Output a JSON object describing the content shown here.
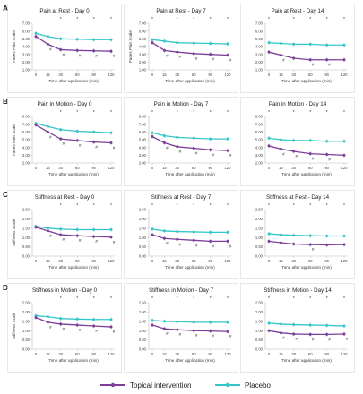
{
  "colors": {
    "topical": "#7b3f99",
    "placebo": "#35c6c9",
    "axis": "#bdbdbd",
    "text": "#222222"
  },
  "legend": {
    "topical": "Topical intervention",
    "placebo": "Placebo"
  },
  "rows": [
    {
      "label": "A.",
      "ylabel": "Faces Pain Scale"
    },
    {
      "label": "B.",
      "ylabel": "Faces Pain Scale"
    },
    {
      "label": "C.",
      "ylabel": "Stiffness Scale"
    },
    {
      "label": "D.",
      "ylabel": "Stiffness Scale"
    }
  ],
  "chart_data": [
    {
      "type": "line",
      "title": "Pain at Rest - Day 0",
      "xlabel": "Time after application (min)",
      "ylabel": "Faces Pain Scale",
      "x": [
        0,
        15,
        30,
        60,
        90,
        120
      ],
      "yticks": [
        "1.00",
        "2.00",
        "3.00",
        "4.00",
        "5.00",
        "6.00",
        "7.00"
      ],
      "ylim": [
        1,
        7
      ],
      "star_x": [
        30,
        60,
        90,
        120
      ],
      "hash_x": [
        15,
        30,
        60,
        90,
        120
      ],
      "series": [
        {
          "name": "Topical intervention",
          "values": [
            5.3,
            4.3,
            3.6,
            3.5,
            3.45,
            3.4
          ]
        },
        {
          "name": "Placebo",
          "values": [
            5.7,
            5.3,
            5.0,
            4.95,
            4.9,
            4.9
          ]
        }
      ]
    },
    {
      "type": "line",
      "title": "Pain at Rest - Day 7",
      "xlabel": "Time after application (min)",
      "ylabel": "Faces Pain Scale",
      "x": [
        0,
        15,
        30,
        60,
        90,
        120
      ],
      "yticks": [
        "1.00",
        "2.00",
        "3.00",
        "4.00",
        "5.00",
        "6.00",
        "7.00"
      ],
      "ylim": [
        1,
        7
      ],
      "star_x": [
        0,
        30,
        60,
        90,
        120
      ],
      "hash_x": [
        15,
        30,
        60,
        90,
        120
      ],
      "series": [
        {
          "name": "Topical intervention",
          "values": [
            4.5,
            3.5,
            3.3,
            3.1,
            3.0,
            2.9
          ]
        },
        {
          "name": "Placebo",
          "values": [
            4.9,
            4.7,
            4.5,
            4.45,
            4.4,
            4.35
          ]
        }
      ]
    },
    {
      "type": "line",
      "title": "Pain at Rest - Day 14",
      "xlabel": "Time after application (min)",
      "ylabel": "",
      "x": [
        0,
        15,
        30,
        60,
        90,
        120
      ],
      "yticks": [
        "1.00",
        "2.00",
        "3.00",
        "4.00",
        "5.00",
        "6.00",
        "7.00"
      ],
      "ylim": [
        1,
        7
      ],
      "star_x": [
        0,
        30,
        60,
        90,
        120
      ],
      "hash_x": [
        15,
        60,
        90
      ],
      "series": [
        {
          "name": "Topical intervention",
          "values": [
            3.3,
            2.9,
            2.5,
            2.3,
            2.3,
            2.3
          ]
        },
        {
          "name": "Placebo",
          "values": [
            4.5,
            4.4,
            4.3,
            4.3,
            4.2,
            4.2
          ]
        }
      ]
    },
    {
      "type": "line",
      "title": "Pain in Motion - Day 0",
      "xlabel": "Time after application (min)",
      "ylabel": "Faces Pain Scale",
      "x": [
        0,
        15,
        30,
        60,
        90,
        120
      ],
      "yticks": [
        "2.00",
        "3.00",
        "4.00",
        "5.00",
        "6.00",
        "7.00",
        "8.00"
      ],
      "ylim": [
        2,
        8
      ],
      "star_x": [
        30,
        60,
        90,
        120
      ],
      "hash_x": [
        15,
        30,
        60,
        90,
        120
      ],
      "series": [
        {
          "name": "Topical intervention",
          "values": [
            6.9,
            6.0,
            5.1,
            4.9,
            4.7,
            4.6
          ]
        },
        {
          "name": "Placebo",
          "values": [
            7.1,
            6.7,
            6.3,
            6.1,
            6.0,
            5.9
          ]
        }
      ]
    },
    {
      "type": "line",
      "title": "Pain in Motion - Day 7",
      "xlabel": "Time after application (min)",
      "ylabel": "",
      "x": [
        0,
        15,
        30,
        60,
        90,
        120
      ],
      "yticks": [
        "2.00",
        "3.00",
        "4.00",
        "5.00",
        "6.00",
        "7.00",
        "8.00"
      ],
      "ylim": [
        2,
        8
      ],
      "star_x": [
        0,
        30,
        60,
        90,
        120
      ],
      "hash_x": [
        15,
        30,
        60,
        90,
        120
      ],
      "series": [
        {
          "name": "Topical intervention",
          "values": [
            5.4,
            4.6,
            4.1,
            3.9,
            3.7,
            3.6
          ]
        },
        {
          "name": "Placebo",
          "values": [
            5.9,
            5.5,
            5.3,
            5.2,
            5.1,
            5.1
          ]
        }
      ]
    },
    {
      "type": "line",
      "title": "Pain in Motion - Day 14",
      "xlabel": "Time after application (min)",
      "ylabel": "",
      "x": [
        0,
        15,
        30,
        60,
        90,
        120
      ],
      "yticks": [
        "2.00",
        "3.00",
        "4.00",
        "5.00",
        "6.00",
        "7.00",
        "8.00"
      ],
      "ylim": [
        2,
        8
      ],
      "star_x": [
        0,
        30,
        60,
        90,
        120
      ],
      "hash_x": [
        15,
        30,
        60,
        90
      ],
      "series": [
        {
          "name": "Topical intervention",
          "values": [
            4.2,
            3.8,
            3.5,
            3.2,
            3.1,
            3.0
          ]
        },
        {
          "name": "Placebo",
          "values": [
            5.2,
            5.0,
            4.9,
            4.9,
            4.8,
            4.8
          ]
        }
      ]
    },
    {
      "type": "line",
      "title": "Stiffness at Rest - Day 0",
      "xlabel": "Time after application (min)",
      "ylabel": "Stiffness Scale",
      "x": [
        0,
        15,
        30,
        60,
        90,
        120
      ],
      "yticks": [
        "0.00",
        "0.50",
        "1.00",
        "1.50",
        "2.00",
        "2.50"
      ],
      "ylim": [
        0,
        2.5
      ],
      "star_x": [
        30,
        60,
        90,
        120
      ],
      "hash_x": [
        15,
        30,
        60,
        90,
        120
      ],
      "series": [
        {
          "name": "Topical intervention",
          "values": [
            1.55,
            1.35,
            1.15,
            1.1,
            1.05,
            1.02
          ]
        },
        {
          "name": "Placebo",
          "values": [
            1.6,
            1.5,
            1.45,
            1.42,
            1.42,
            1.42
          ]
        }
      ]
    },
    {
      "type": "line",
      "title": "Stiffness at Rest - Day 7",
      "xlabel": "Time after application (min)",
      "ylabel": "",
      "x": [
        0,
        15,
        30,
        60,
        90,
        120
      ],
      "yticks": [
        "0.00",
        "0.50",
        "1.00",
        "1.50",
        "2.00",
        "2.50"
      ],
      "ylim": [
        0,
        2.5
      ],
      "star_x": [
        0,
        30,
        60,
        90,
        120
      ],
      "hash_x": [
        15,
        30,
        60,
        90,
        120
      ],
      "series": [
        {
          "name": "Topical intervention",
          "values": [
            1.15,
            0.95,
            0.9,
            0.85,
            0.8,
            0.8
          ]
        },
        {
          "name": "Placebo",
          "values": [
            1.45,
            1.35,
            1.32,
            1.3,
            1.28,
            1.28
          ]
        }
      ]
    },
    {
      "type": "line",
      "title": "Stiffness at Rest - Day 14",
      "xlabel": "Time after application (min)",
      "ylabel": "",
      "x": [
        0,
        15,
        30,
        60,
        90,
        120
      ],
      "yticks": [
        "0.00",
        "0.50",
        "1.00",
        "1.50",
        "2.00",
        "2.50"
      ],
      "ylim": [
        0,
        2.5
      ],
      "star_x": [
        0,
        30,
        60,
        90,
        120
      ],
      "hash_x": [
        60
      ],
      "series": [
        {
          "name": "Topical intervention",
          "values": [
            0.8,
            0.72,
            0.65,
            0.62,
            0.6,
            0.62
          ]
        },
        {
          "name": "Placebo",
          "values": [
            1.2,
            1.15,
            1.12,
            1.1,
            1.08,
            1.08
          ]
        }
      ]
    },
    {
      "type": "line",
      "title": "Stiffness in Motion - Day 0",
      "xlabel": "Time after application (min)",
      "ylabel": "Stiffness Scale",
      "x": [
        0,
        15,
        30,
        60,
        90,
        120
      ],
      "yticks": [
        "0.00",
        "0.50",
        "1.00",
        "1.50",
        "2.00",
        "2.50"
      ],
      "ylim": [
        0,
        2.5
      ],
      "star_x": [
        30,
        60,
        90,
        120
      ],
      "hash_x": [
        15,
        30,
        60,
        90,
        120
      ],
      "series": [
        {
          "name": "Topical intervention",
          "values": [
            1.7,
            1.45,
            1.35,
            1.3,
            1.25,
            1.2
          ]
        },
        {
          "name": "Placebo",
          "values": [
            1.8,
            1.75,
            1.65,
            1.62,
            1.6,
            1.6
          ]
        }
      ]
    },
    {
      "type": "line",
      "title": "Stiffness in Motion - Day 7",
      "xlabel": "Time after application (min)",
      "ylabel": "",
      "x": [
        0,
        15,
        30,
        60,
        90,
        120
      ],
      "yticks": [
        "0.00",
        "0.50",
        "1.00",
        "1.50",
        "2.00",
        "2.50"
      ],
      "ylim": [
        0,
        2.5
      ],
      "star_x": [
        0,
        30,
        60,
        90,
        120
      ],
      "hash_x": [
        15,
        30,
        60,
        90,
        120
      ],
      "series": [
        {
          "name": "Topical intervention",
          "values": [
            1.3,
            1.1,
            1.05,
            1.0,
            0.98,
            0.95
          ]
        },
        {
          "name": "Placebo",
          "values": [
            1.55,
            1.5,
            1.48,
            1.45,
            1.45,
            1.45
          ]
        }
      ]
    },
    {
      "type": "line",
      "title": "Stiffness in Motion - Day 14",
      "xlabel": "Time after application (min)",
      "ylabel": "",
      "x": [
        0,
        15,
        30,
        60,
        90,
        120
      ],
      "yticks": [
        "0.00",
        "0.50",
        "1.00",
        "1.50",
        "2.00",
        "2.50"
      ],
      "ylim": [
        0,
        2.5
      ],
      "star_x": [
        0,
        30,
        60,
        90,
        120
      ],
      "hash_x": [
        15,
        30,
        60,
        90,
        120
      ],
      "series": [
        {
          "name": "Topical intervention",
          "values": [
            1.0,
            0.88,
            0.82,
            0.8,
            0.8,
            0.82
          ]
        },
        {
          "name": "Placebo",
          "values": [
            1.4,
            1.35,
            1.32,
            1.3,
            1.28,
            1.25
          ]
        }
      ]
    }
  ]
}
